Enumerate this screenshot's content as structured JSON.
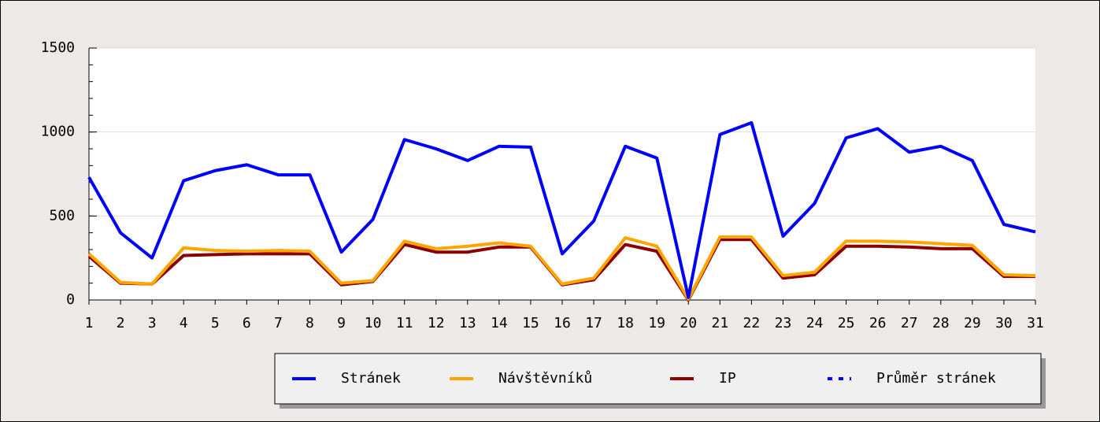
{
  "chart_data": {
    "type": "line",
    "x": [
      1,
      2,
      3,
      4,
      5,
      6,
      7,
      8,
      9,
      10,
      11,
      12,
      13,
      14,
      15,
      16,
      17,
      18,
      19,
      20,
      21,
      22,
      23,
      24,
      25,
      26,
      27,
      28,
      29,
      30,
      31
    ],
    "xlim": [
      1,
      31
    ],
    "ylim": [
      0,
      1500
    ],
    "yticks": [
      0,
      500,
      1000,
      1500
    ],
    "grid": true,
    "legend": "bottom-right",
    "series": [
      {
        "name": "Stránek",
        "color": "#0000ff",
        "style": "solid",
        "values": [
          730,
          400,
          250,
          710,
          770,
          805,
          745,
          745,
          285,
          480,
          955,
          900,
          830,
          915,
          910,
          275,
          470,
          915,
          845,
          15,
          985,
          1055,
          380,
          575,
          965,
          1020,
          880,
          915,
          830,
          450,
          405
        ]
      },
      {
        "name": "Návštěvníků",
        "color": "#ffa500",
        "style": "solid",
        "values": [
          275,
          105,
          95,
          310,
          295,
          290,
          295,
          290,
          100,
          115,
          350,
          305,
          320,
          340,
          320,
          95,
          130,
          370,
          320,
          5,
          375,
          375,
          145,
          165,
          350,
          350,
          345,
          335,
          325,
          150,
          145
        ]
      },
      {
        "name": "IP",
        "color": "#8b0000",
        "style": "solid",
        "values": [
          260,
          100,
          95,
          265,
          270,
          275,
          275,
          275,
          90,
          110,
          330,
          285,
          285,
          315,
          315,
          90,
          120,
          330,
          290,
          0,
          360,
          360,
          130,
          150,
          320,
          320,
          315,
          305,
          305,
          140,
          140
        ]
      },
      {
        "name": "Průměr stránek",
        "color": "#0000ff",
        "style": "dotted",
        "values": [
          null,
          null,
          null,
          null,
          null,
          null,
          null,
          null,
          null,
          null,
          null,
          null,
          null,
          null,
          null,
          null,
          null,
          null,
          null,
          null,
          null,
          null,
          null,
          null,
          null,
          null,
          null,
          null,
          null,
          null,
          null
        ]
      }
    ]
  }
}
